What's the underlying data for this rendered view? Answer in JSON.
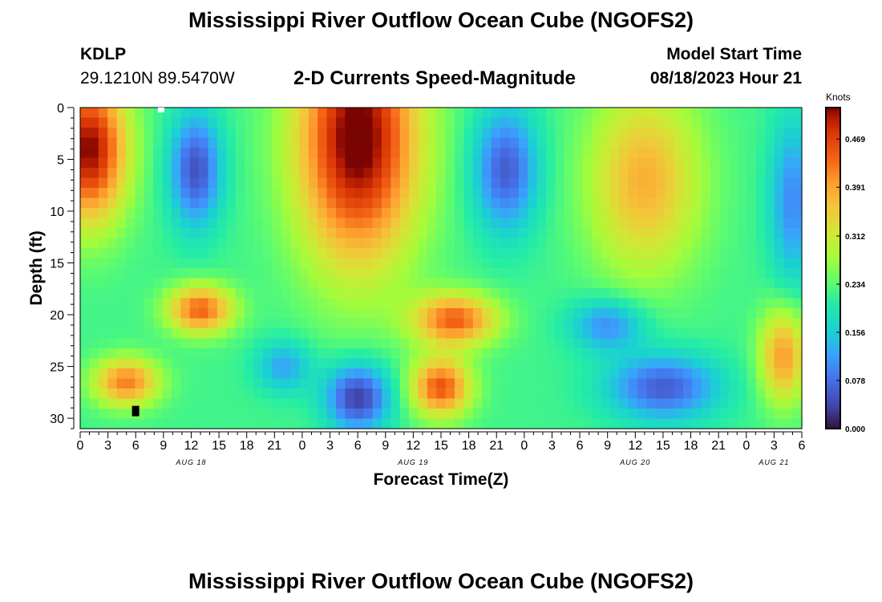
{
  "header": {
    "title": "Mississippi River Outflow Ocean Cube (NGOFS2)",
    "station_id": "KDLP",
    "coordinates": "29.1210N  89.5470W",
    "product": "2-D Currents Speed-Magnitude",
    "model_start_label": "Model Start Time",
    "model_start_value": "08/18/2023 Hour 21"
  },
  "footer": {
    "next_title": "Mississippi River Outflow Ocean Cube (NGOFS2)"
  },
  "chart_data": {
    "type": "heatmap",
    "title": "2-D Currents Speed-Magnitude",
    "xlabel": "Forecast Time(Z)",
    "ylabel": "Depth (ft)",
    "xlim": [
      0,
      78
    ],
    "ylim": [
      31,
      0
    ],
    "x_tick_values": [
      0,
      3,
      6,
      9,
      12,
      15,
      18,
      21,
      24,
      27,
      30,
      33,
      36,
      39,
      42,
      45,
      48,
      51,
      54,
      57,
      60,
      63,
      66,
      69,
      72,
      75,
      78
    ],
    "x_tick_labels": [
      "0",
      "3",
      "6",
      "9",
      "12",
      "15",
      "18",
      "21",
      "0",
      "3",
      "6",
      "9",
      "12",
      "15",
      "18",
      "21",
      "0",
      "3",
      "6",
      "9",
      "12",
      "15",
      "18",
      "21",
      "0",
      "3",
      "6"
    ],
    "y_tick_values": [
      0,
      5,
      10,
      15,
      20,
      25,
      30
    ],
    "y_tick_labels": [
      "0",
      "5",
      "10",
      "15",
      "20",
      "25",
      "30"
    ],
    "day_labels": [
      {
        "label": "AUG 18",
        "x": 12
      },
      {
        "label": "AUG 19",
        "x": 36
      },
      {
        "label": "AUG 20",
        "x": 60
      },
      {
        "label": "AUG 21",
        "x": 75
      }
    ],
    "colorbar": {
      "unit": "Knots",
      "min": 0.0,
      "max": 0.52,
      "ticks": [
        0.0,
        0.078,
        0.156,
        0.234,
        0.312,
        0.391,
        0.469
      ],
      "tick_labels": [
        "0.000",
        "0.078",
        "0.156",
        "0.234",
        "0.312",
        "0.391",
        "0.469"
      ]
    },
    "field_features": [
      {
        "region": "surface ebb 0-3h",
        "x": 1,
        "depth": 4,
        "speed": 0.5
      },
      {
        "region": "mid-water core 9-36h",
        "x": 30,
        "depth": 5,
        "speed": 0.52
      },
      {
        "region": "surface low 12h",
        "x": 12.5,
        "depth": 6,
        "speed": 0.05
      },
      {
        "region": "surface low 45h",
        "x": 46,
        "depth": 6,
        "speed": 0.05
      },
      {
        "region": "upper band 60h",
        "x": 61,
        "depth": 10,
        "speed": 0.38
      },
      {
        "region": "lower high 12h",
        "x": 13,
        "depth": 19.5,
        "speed": 0.44
      },
      {
        "region": "lower high 40h",
        "x": 40.5,
        "depth": 20.5,
        "speed": 0.44
      },
      {
        "region": "near-bottom high 4h",
        "x": 5,
        "depth": 26.5,
        "speed": 0.41
      },
      {
        "region": "near-bottom high 39h",
        "x": 39,
        "depth": 27,
        "speed": 0.45
      },
      {
        "region": "near-bottom low 30h",
        "x": 30,
        "depth": 28,
        "speed": 0.03
      },
      {
        "region": "near-bottom low 63h",
        "x": 63,
        "depth": 27,
        "speed": 0.04
      },
      {
        "region": "lower high 76h",
        "x": 76,
        "depth": 24,
        "speed": 0.4
      }
    ]
  }
}
